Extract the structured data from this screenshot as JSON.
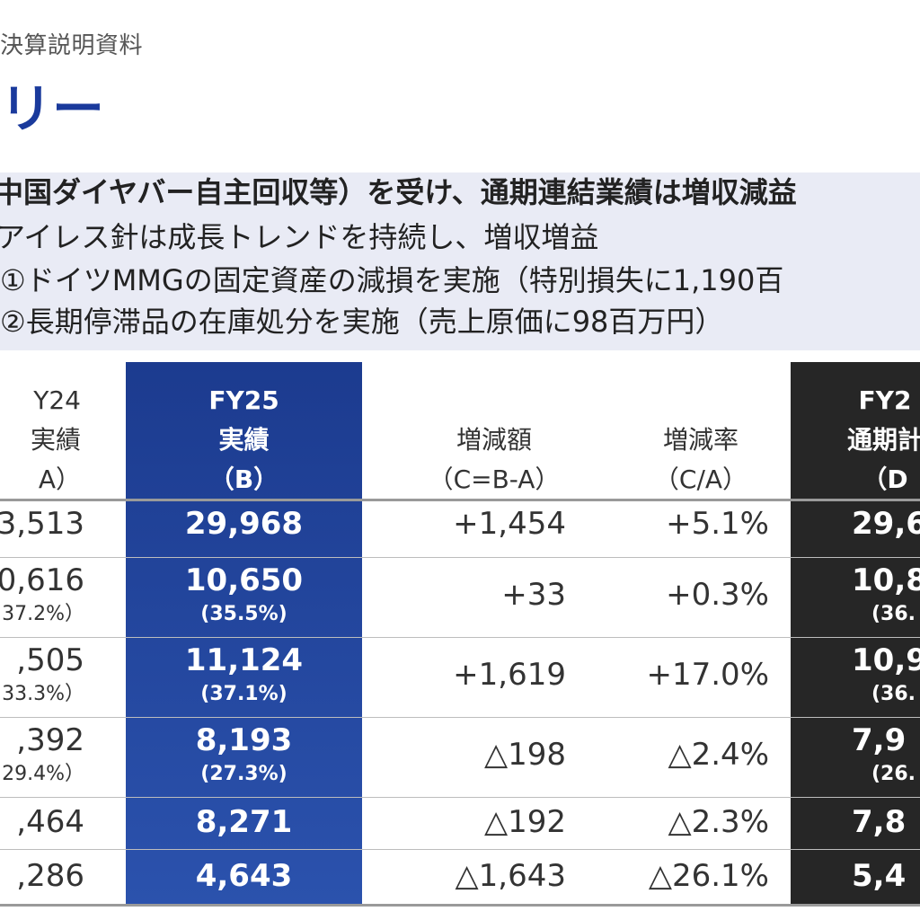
{
  "header": {
    "doc_label": "決算説明資料",
    "title": "リー"
  },
  "summary": {
    "line1": "中国ダイヤバー自主回収等）を受け、通期連結業績は増収減益",
    "line2": "アイレス針は成長トレンドを持続し、増収増益",
    "line3": "①ドイツMMGの固定資産の減損を実施（特別損失に1,190百",
    "line4": "②長期停滞品の在庫処分を実施（売上原価に98百万円）"
  },
  "table": {
    "col_a": {
      "l1": "Y24",
      "l2": "実績",
      "l3": "A）"
    },
    "col_b": {
      "l1": "FY25",
      "l2": "実績",
      "l3": "（B）"
    },
    "col_c": {
      "l1": "増減額",
      "l2": "（C=B-A）"
    },
    "col_r": {
      "l1": "増減率",
      "l2": "（C/A）"
    },
    "col_d": {
      "l1": "FY2",
      "l2": "通期計",
      "l3": "（D"
    },
    "rows": [
      {
        "a": "3,513",
        "a_sub": "",
        "b": "29,968",
        "b_sub": "",
        "c": "+1,454",
        "r": "+5.1%",
        "d": "29,6",
        "d_sub": ""
      },
      {
        "a": "0,616",
        "a_sub": "37.2%）",
        "b": "10,650",
        "b_sub": "(35.5%)",
        "c": "+33",
        "r": "+0.3%",
        "d": "10,8",
        "d_sub": "(36."
      },
      {
        "a": ",505",
        "a_sub": "33.3%）",
        "b": "11,124",
        "b_sub": "(37.1%)",
        "c": "+1,619",
        "r": "+17.0%",
        "d": "10,9",
        "d_sub": "(36."
      },
      {
        "a": ",392",
        "a_sub": "29.4%）",
        "b": "8,193",
        "b_sub": "(27.3%)",
        "c": "△198",
        "r": "△2.4%",
        "d": "7,9",
        "d_sub": "(26."
      },
      {
        "a": ",464",
        "a_sub": "",
        "b": "8,271",
        "b_sub": "",
        "c": "△192",
        "r": "△2.3%",
        "d": "7,8",
        "d_sub": ""
      },
      {
        "a": ",286",
        "a_sub": "",
        "b": "4,643",
        "b_sub": "",
        "c": "△1,643",
        "r": "△26.1%",
        "d": "5,4",
        "d_sub": ""
      }
    ]
  }
}
